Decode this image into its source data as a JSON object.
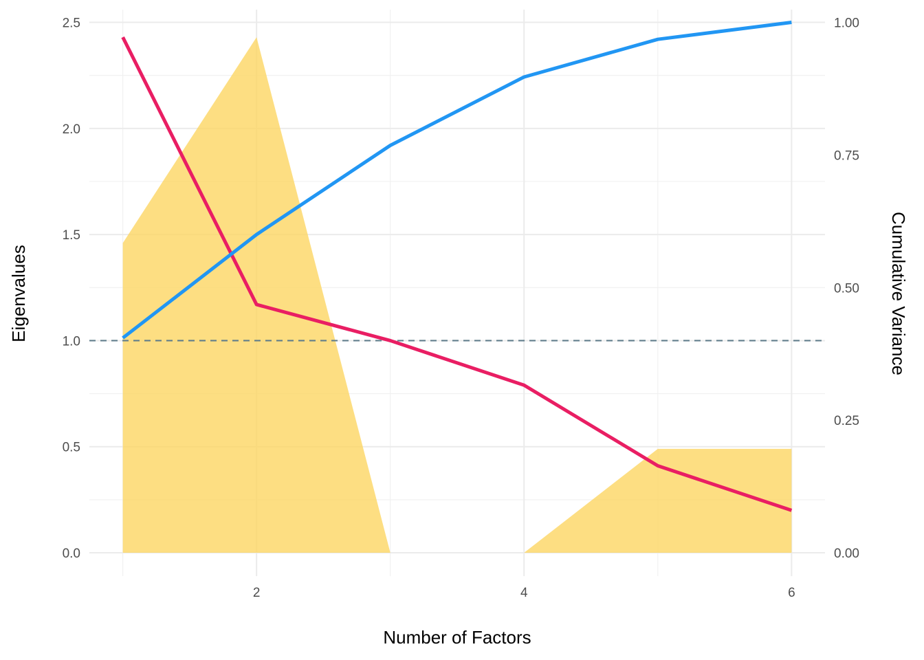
{
  "chart_data": {
    "type": "line",
    "title": "",
    "xlabel": "Number of Factors",
    "ylabel": "Eigenvalues",
    "y2label": "Cumulative Variance",
    "x": [
      1,
      2,
      3,
      4,
      5,
      6
    ],
    "xlim": [
      0.75,
      6.25
    ],
    "ylim": [
      -0.11,
      2.56
    ],
    "y2lim": [
      -0.044,
      1.024
    ],
    "x_ticks": [
      2,
      4,
      6
    ],
    "y_ticks": [
      0.0,
      0.5,
      1.0,
      1.5,
      2.0,
      2.5
    ],
    "y_tick_labels": [
      "0.0",
      "0.5",
      "1.0",
      "1.5",
      "2.0",
      "2.5"
    ],
    "y2_ticks": [
      0.0,
      0.25,
      0.5,
      0.75,
      1.0
    ],
    "y2_tick_labels": [
      "0.00",
      "0.25",
      "0.50",
      "0.75",
      "1.00"
    ],
    "grid": true,
    "series": [
      {
        "type": "area",
        "axis": "left",
        "color": "#FDD663",
        "values": [
          1.46,
          2.43,
          0.0,
          0.0,
          0.49,
          0.49
        ]
      },
      {
        "type": "line",
        "axis": "left",
        "color": "#E91E63",
        "values": [
          2.43,
          1.17,
          1.0,
          0.79,
          0.41,
          0.2
        ]
      },
      {
        "type": "line",
        "axis": "right",
        "color": "#2196F3",
        "values": [
          0.405,
          0.6,
          0.768,
          0.897,
          0.968,
          1.0
        ]
      }
    ],
    "reference_line": {
      "y": 1.0,
      "color": "#607D8B",
      "style": "dashed"
    }
  }
}
